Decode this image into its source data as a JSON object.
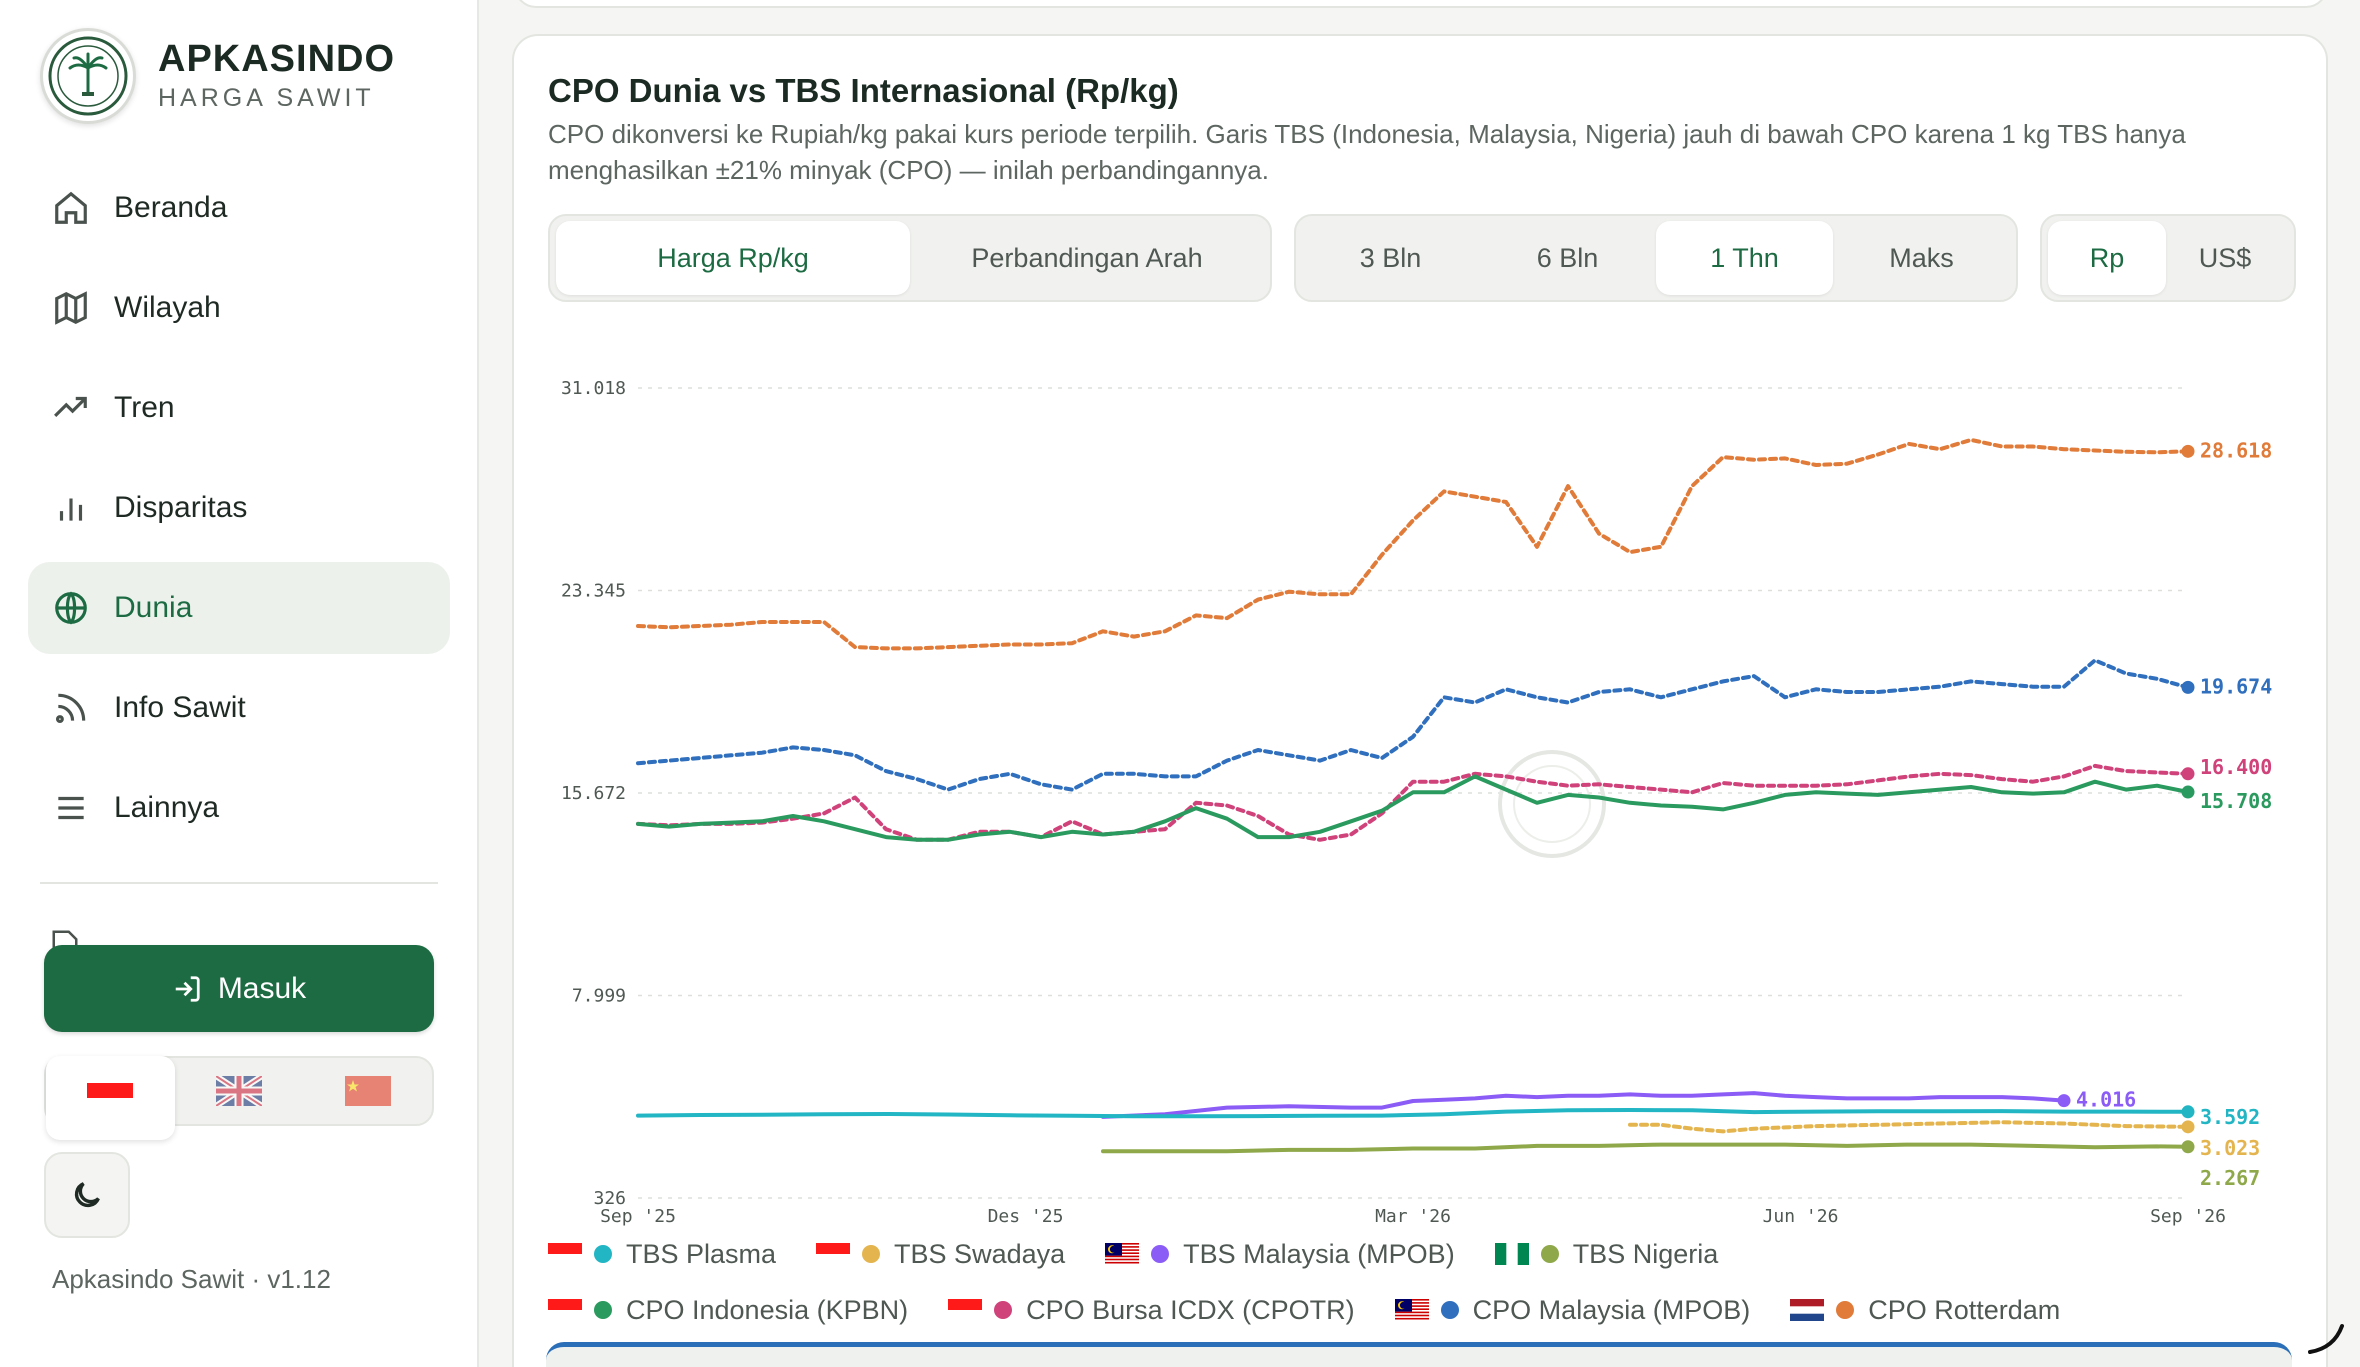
{
  "brand": {
    "name": "APKASINDO",
    "subtitle": "HARGA SAWIT"
  },
  "nav": [
    {
      "label": "Beranda",
      "icon": "home-icon"
    },
    {
      "label": "Wilayah",
      "icon": "map-icon"
    },
    {
      "label": "Tren",
      "icon": "trending-up-icon"
    },
    {
      "label": "Disparitas",
      "icon": "bar-chart-icon"
    },
    {
      "label": "Dunia",
      "icon": "globe-icon",
      "active": true
    },
    {
      "label": "Info Sawit",
      "icon": "rss-icon"
    },
    {
      "label": "Lainnya",
      "icon": "menu-icon"
    }
  ],
  "login_label": "Masuk",
  "languages": [
    {
      "code": "id",
      "icon": "indonesia-flag-icon",
      "active": true
    },
    {
      "code": "en",
      "icon": "uk-flag-icon"
    },
    {
      "code": "zh",
      "icon": "china-flag-icon"
    }
  ],
  "version": "Apkasindo Sawit · v1.12",
  "card": {
    "title": "CPO Dunia vs TBS Internasional (Rp/kg)",
    "description": "CPO dikonversi ke Rupiah/kg pakai kurs periode terpilih. Garis TBS (Indonesia, Malaysia, Nigeria) jauh di bawah CPO karena 1 kg TBS hanya menghasilkan ±21% minyak (CPO) — inilah perbandingannya.",
    "view_tabs": [
      "Harga Rp/kg",
      "Perbandingan Arah"
    ],
    "view_active": 0,
    "range_tabs": [
      "3 Bln",
      "6 Bln",
      "1 Thn",
      "Maks"
    ],
    "range_active": 2,
    "currency_tabs": [
      "Rp",
      "US$"
    ],
    "currency_active": 0
  },
  "chart_data": {
    "type": "line",
    "ylim": [
      326,
      31018
    ],
    "y_ticks": [
      "31.018",
      "23.345",
      "15.672",
      "7.999",
      "326"
    ],
    "y_tick_values": [
      31018,
      23345,
      15672,
      7999,
      326
    ],
    "x_ticks": [
      "Sep '25",
      "Des '25",
      "Mar '26",
      "Jun '26",
      "Sep '26"
    ],
    "series": [
      {
        "name": "CPO Rotterdam",
        "color": "#e07b39",
        "dashed": true,
        "end_label": "28.618",
        "x": [
          0,
          2,
          4,
          6,
          8,
          10,
          12,
          14,
          16,
          18,
          20,
          22,
          24,
          26,
          28,
          30,
          32,
          34,
          36,
          38,
          40,
          42,
          44,
          46,
          48,
          50,
          52,
          54,
          56,
          58,
          60,
          62,
          64,
          66,
          68,
          70,
          72,
          74,
          76,
          78,
          80,
          82,
          84,
          86,
          88,
          90,
          92,
          94,
          96,
          98,
          100
        ],
        "values": [
          22000,
          21950,
          22000,
          22050,
          22150,
          22150,
          22150,
          21200,
          21150,
          21150,
          21200,
          21250,
          21300,
          21300,
          21350,
          21800,
          21600,
          21800,
          22400,
          22300,
          23000,
          23300,
          23200,
          23200,
          24700,
          26000,
          27100,
          26900,
          26700,
          25000,
          27300,
          25500,
          24800,
          25000,
          27300,
          28400,
          28300,
          28350,
          28100,
          28150,
          28500,
          28900,
          28700,
          29050,
          28800,
          28800,
          28700,
          28650,
          28600,
          28580,
          28618
        ]
      },
      {
        "name": "CPO Malaysia (MPOB)",
        "color": "#2f6fbd",
        "dashed": true,
        "end_label": "19.674",
        "x": [
          0,
          2,
          4,
          6,
          8,
          10,
          12,
          14,
          16,
          18,
          20,
          22,
          24,
          26,
          28,
          30,
          32,
          34,
          36,
          38,
          40,
          42,
          44,
          46,
          48,
          50,
          52,
          54,
          56,
          58,
          60,
          62,
          64,
          66,
          68,
          70,
          72,
          74,
          76,
          78,
          80,
          82,
          84,
          86,
          88,
          90,
          92,
          94,
          96,
          98,
          100
        ],
        "values": [
          16800,
          16900,
          17000,
          17100,
          17200,
          17400,
          17300,
          17100,
          16500,
          16200,
          15800,
          16200,
          16400,
          16000,
          15800,
          16400,
          16400,
          16300,
          16300,
          16900,
          17300,
          17100,
          16900,
          17300,
          17000,
          17800,
          19300,
          19100,
          19600,
          19300,
          19100,
          19500,
          19600,
          19300,
          19600,
          19900,
          20100,
          19300,
          19600,
          19500,
          19500,
          19600,
          19700,
          19900,
          19800,
          19700,
          19700,
          20700,
          20200,
          20000,
          19674
        ]
      },
      {
        "name": "CPO Bursa ICDX (CPOTR)",
        "color": "#d0427a",
        "dashed": true,
        "end_label": "16.400",
        "x": [
          0,
          2,
          4,
          6,
          8,
          10,
          12,
          14,
          16,
          18,
          20,
          22,
          24,
          26,
          28,
          30,
          32,
          34,
          36,
          38,
          40,
          42,
          44,
          46,
          48,
          50,
          52,
          54,
          56,
          58,
          60,
          62,
          64,
          66,
          68,
          70,
          72,
          74,
          76,
          78,
          80,
          82,
          84,
          86,
          88,
          90,
          92,
          94,
          96,
          98,
          100
        ],
        "values": [
          14500,
          14450,
          14500,
          14500,
          14550,
          14700,
          14900,
          15500,
          14300,
          13900,
          13900,
          14200,
          14200,
          14000,
          14600,
          14100,
          14200,
          14300,
          15300,
          15200,
          14800,
          14100,
          13900,
          14100,
          14900,
          16100,
          16100,
          16400,
          16300,
          16100,
          15950,
          16000,
          15900,
          15800,
          15700,
          16050,
          15950,
          15950,
          15950,
          16000,
          16150,
          16300,
          16400,
          16350,
          16200,
          16100,
          16300,
          16700,
          16500,
          16450,
          16400
        ]
      },
      {
        "name": "CPO Indonesia (KPBN)",
        "color": "#2a9a5e",
        "dashed": false,
        "end_label": "15.708",
        "x": [
          0,
          2,
          4,
          6,
          8,
          10,
          12,
          14,
          16,
          18,
          20,
          22,
          24,
          26,
          28,
          30,
          32,
          34,
          36,
          38,
          40,
          42,
          44,
          46,
          48,
          50,
          52,
          54,
          56,
          58,
          60,
          62,
          64,
          66,
          68,
          70,
          72,
          74,
          76,
          78,
          80,
          82,
          84,
          86,
          88,
          90,
          92,
          94,
          96,
          98,
          100
        ],
        "values": [
          14500,
          14400,
          14500,
          14550,
          14600,
          14800,
          14600,
          14300,
          14000,
          13900,
          13900,
          14100,
          14200,
          14000,
          14200,
          14100,
          14200,
          14600,
          15100,
          14700,
          14000,
          14000,
          14200,
          14600,
          15000,
          15700,
          15700,
          16300,
          15800,
          15300,
          15600,
          15500,
          15300,
          15200,
          15150,
          15050,
          15300,
          15600,
          15700,
          15650,
          15600,
          15700,
          15800,
          15900,
          15700,
          15650,
          15700,
          16100,
          15800,
          15950,
          15708
        ]
      },
      {
        "name": "TBS Malaysia (MPOB)",
        "color": "#8b5cf6",
        "dashed": false,
        "end_label": "4.016",
        "x": [
          30,
          34,
          38,
          42,
          46,
          48,
          50,
          52,
          54,
          56,
          58,
          60,
          62,
          64,
          66,
          68,
          70,
          72,
          74,
          76,
          78,
          80,
          82,
          84,
          86,
          88,
          90,
          92
        ],
        "values": [
          3400,
          3500,
          3750,
          3800,
          3750,
          3750,
          4000,
          4050,
          4100,
          4200,
          4150,
          4200,
          4200,
          4250,
          4200,
          4200,
          4250,
          4300,
          4200,
          4150,
          4100,
          4100,
          4100,
          4150,
          4150,
          4150,
          4100,
          4016
        ]
      },
      {
        "name": "TBS Plasma",
        "color": "#22b5c4",
        "dashed": false,
        "end_label": "3.592",
        "x": [
          0,
          4,
          8,
          12,
          16,
          20,
          24,
          28,
          32,
          36,
          40,
          44,
          48,
          52,
          56,
          60,
          64,
          68,
          72,
          76,
          80,
          84,
          88,
          92,
          96,
          100
        ],
        "values": [
          3450,
          3470,
          3480,
          3500,
          3510,
          3490,
          3460,
          3440,
          3420,
          3420,
          3430,
          3440,
          3450,
          3500,
          3600,
          3650,
          3660,
          3650,
          3580,
          3600,
          3610,
          3610,
          3620,
          3600,
          3600,
          3592
        ]
      },
      {
        "name": "TBS Swadaya",
        "color": "#e4b54f",
        "dashed": true,
        "end_label": "3.023",
        "x": [
          64,
          66,
          68,
          70,
          72,
          74,
          76,
          80,
          84,
          88,
          92,
          96,
          100
        ],
        "values": [
          3100,
          3100,
          2950,
          2850,
          2950,
          3000,
          3050,
          3100,
          3150,
          3200,
          3150,
          3050,
          3023
        ]
      },
      {
        "name": "TBS Nigeria",
        "color": "#8ea84a",
        "dashed": false,
        "end_label": "2.267",
        "x": [
          30,
          34,
          38,
          42,
          46,
          50,
          54,
          58,
          62,
          66,
          70,
          74,
          78,
          82,
          86,
          90,
          94,
          98,
          100
        ],
        "values": [
          2100,
          2100,
          2100,
          2150,
          2150,
          2200,
          2200,
          2300,
          2300,
          2350,
          2350,
          2350,
          2300,
          2350,
          2350,
          2300,
          2250,
          2280,
          2267
        ]
      }
    ]
  },
  "legend_rows": [
    [
      {
        "name": "TBS Plasma",
        "flag": "indonesia-flag-icon",
        "color": "#22b5c4"
      },
      {
        "name": "TBS Swadaya",
        "flag": "indonesia-flag-icon",
        "color": "#e4b54f"
      },
      {
        "name": "TBS Malaysia (MPOB)",
        "flag": "malaysia-flag-icon",
        "color": "#8b5cf6"
      },
      {
        "name": "TBS Nigeria",
        "flag": "nigeria-flag-icon",
        "color": "#8ea84a"
      }
    ],
    [
      {
        "name": "CPO Indonesia (KPBN)",
        "flag": "indonesia-flag-icon",
        "color": "#2a9a5e"
      },
      {
        "name": "CPO Bursa ICDX (CPOTR)",
        "flag": "indonesia-flag-icon",
        "color": "#d0427a"
      },
      {
        "name": "CPO Malaysia (MPOB)",
        "flag": "malaysia-flag-icon",
        "color": "#2f6fbd"
      },
      {
        "name": "CPO Rotterdam",
        "flag": "netherlands-flag-icon",
        "color": "#e07b39"
      }
    ]
  ]
}
